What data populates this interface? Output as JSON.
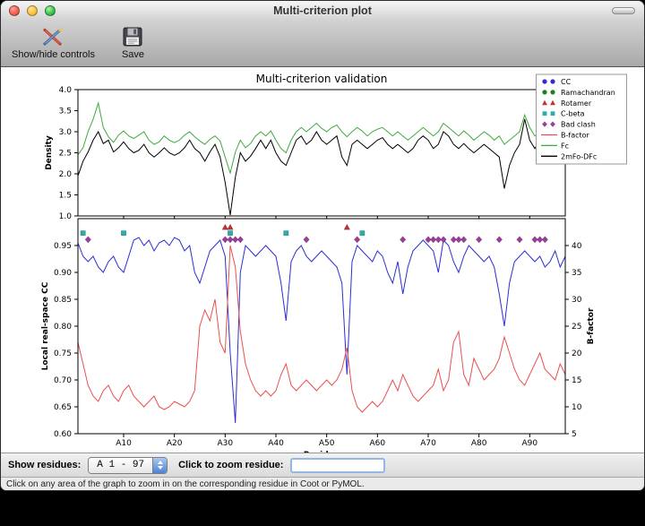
{
  "window": {
    "title": "Multi-criterion plot"
  },
  "toolbar": {
    "show_hide_label": "Show/hide controls",
    "save_label": "Save"
  },
  "controls": {
    "show_residues_label": "Show residues:",
    "residue_range_value": "A  1 - 97",
    "zoom_residue_label": "Click to zoom residue:",
    "zoom_input_value": ""
  },
  "status_bar": {
    "text": "Click on any area of the graph to zoom in on the corresponding residue in Coot or PyMOL."
  },
  "chart_data": {
    "figure_title": "Multi-criterion validation",
    "x": {
      "label": "Residue",
      "range": [
        1,
        97
      ],
      "ticks": [
        10,
        20,
        30,
        40,
        50,
        60,
        70,
        80,
        90
      ],
      "tick_labels": [
        "A10",
        "A20",
        "A30",
        "A40",
        "A50",
        "A60",
        "A70",
        "A80",
        "A90"
      ]
    },
    "legend": {
      "position": "upper right",
      "entries": [
        {
          "label": "CC",
          "marker": "circle",
          "color": "#2e2ed0"
        },
        {
          "label": "Ramachandran",
          "marker": "circle",
          "color": "#1d801d"
        },
        {
          "label": "Rotamer",
          "marker": "triangle",
          "color": "#c03030"
        },
        {
          "label": "C-beta",
          "marker": "square",
          "color": "#2aadad"
        },
        {
          "label": "Bad clash",
          "marker": "diamond",
          "color": "#9c3d9c"
        },
        {
          "label": "B-factor",
          "marker": "line",
          "color": "#e85050"
        },
        {
          "label": "Fc",
          "marker": "line",
          "color": "#3faa3f"
        },
        {
          "label": "2mFo-DFc",
          "marker": "line",
          "color": "#000000"
        }
      ]
    },
    "top_plot": {
      "type": "line",
      "ylabel": "Density",
      "ylim": [
        1.0,
        4.0
      ],
      "yticks": [
        "1.0",
        "1.5",
        "2.0",
        "2.5",
        "3.0",
        "3.5",
        "4.0"
      ],
      "series": [
        {
          "name": "Fc",
          "color": "#3faa3f",
          "values": [
            2.45,
            2.62,
            3.0,
            3.3,
            3.68,
            3.1,
            2.88,
            2.75,
            2.92,
            3.02,
            2.9,
            2.84,
            2.92,
            3.0,
            2.8,
            2.7,
            2.76,
            2.9,
            2.8,
            2.74,
            2.8,
            2.92,
            3.0,
            2.88,
            2.78,
            2.7,
            2.82,
            2.9,
            2.78,
            2.4,
            2.02,
            2.52,
            2.8,
            2.62,
            2.72,
            2.9,
            3.0,
            2.9,
            3.02,
            2.8,
            2.6,
            2.5,
            2.8,
            3.0,
            3.1,
            3.0,
            3.1,
            3.2,
            3.08,
            3.0,
            3.1,
            3.16,
            3.0,
            2.88,
            3.0,
            3.1,
            3.02,
            2.9,
            3.0,
            3.06,
            3.1,
            3.0,
            2.9,
            3.0,
            2.9,
            2.8,
            2.9,
            3.0,
            3.1,
            3.0,
            2.9,
            3.0,
            3.2,
            3.1,
            3.0,
            2.9,
            3.02,
            2.92,
            2.8,
            2.9,
            3.0,
            2.92,
            2.8,
            2.9,
            2.7,
            2.8,
            2.9,
            3.0,
            3.4,
            3.1,
            2.9,
            3.0,
            2.9,
            3.0,
            3.3,
            2.92,
            3.36
          ]
        },
        {
          "name": "2mFo-DFc",
          "color": "#000000",
          "values": [
            1.95,
            2.3,
            2.52,
            2.8,
            3.0,
            2.72,
            2.8,
            2.52,
            2.62,
            2.76,
            2.6,
            2.5,
            2.56,
            2.7,
            2.5,
            2.4,
            2.5,
            2.62,
            2.5,
            2.44,
            2.5,
            2.62,
            2.8,
            2.6,
            2.5,
            2.3,
            2.52,
            2.7,
            2.4,
            1.8,
            1.02,
            1.92,
            2.5,
            2.3,
            2.42,
            2.6,
            2.8,
            2.6,
            2.8,
            2.5,
            2.3,
            2.2,
            2.5,
            2.8,
            2.9,
            2.7,
            2.8,
            3.0,
            2.8,
            2.7,
            2.8,
            2.9,
            2.4,
            2.2,
            2.7,
            2.8,
            2.7,
            2.6,
            2.7,
            2.8,
            2.86,
            2.7,
            2.6,
            2.7,
            2.6,
            2.5,
            2.6,
            2.8,
            2.9,
            2.8,
            2.6,
            2.7,
            3.0,
            2.9,
            2.7,
            2.6,
            2.72,
            2.6,
            2.5,
            2.6,
            2.7,
            2.6,
            2.5,
            2.4,
            1.65,
            2.2,
            2.5,
            2.7,
            3.3,
            2.8,
            2.6,
            2.8,
            2.6,
            2.7,
            3.1,
            2.6,
            3.3
          ]
        }
      ]
    },
    "bottom_plot": {
      "type": "line",
      "ylabel_left": "Local real-space CC",
      "ylabel_right": "B-factor",
      "ylim_left": [
        0.6,
        1.0
      ],
      "yticks_left": [
        "0.60",
        "0.65",
        "0.70",
        "0.75",
        "0.80",
        "0.85",
        "0.90",
        "0.95"
      ],
      "ylim_right": [
        5,
        45
      ],
      "yticks_right": [
        "5",
        "10",
        "15",
        "20",
        "25",
        "30",
        "35",
        "40"
      ],
      "series": [
        {
          "name": "CC",
          "axis": "left",
          "color": "#2e2ed0",
          "values": [
            0.955,
            0.93,
            0.92,
            0.93,
            0.91,
            0.9,
            0.92,
            0.93,
            0.91,
            0.9,
            0.93,
            0.96,
            0.965,
            0.95,
            0.96,
            0.94,
            0.955,
            0.96,
            0.95,
            0.965,
            0.96,
            0.94,
            0.95,
            0.9,
            0.88,
            0.91,
            0.94,
            0.95,
            0.96,
            0.93,
            0.75,
            0.62,
            0.9,
            0.95,
            0.94,
            0.93,
            0.94,
            0.95,
            0.94,
            0.93,
            0.88,
            0.81,
            0.92,
            0.94,
            0.95,
            0.93,
            0.92,
            0.93,
            0.94,
            0.93,
            0.92,
            0.91,
            0.88,
            0.71,
            0.92,
            0.95,
            0.94,
            0.93,
            0.92,
            0.94,
            0.93,
            0.9,
            0.88,
            0.92,
            0.86,
            0.91,
            0.94,
            0.95,
            0.96,
            0.95,
            0.94,
            0.9,
            0.96,
            0.95,
            0.92,
            0.9,
            0.93,
            0.95,
            0.94,
            0.93,
            0.92,
            0.93,
            0.91,
            0.86,
            0.8,
            0.88,
            0.92,
            0.93,
            0.94,
            0.93,
            0.92,
            0.93,
            0.91,
            0.92,
            0.94,
            0.91,
            0.93
          ]
        },
        {
          "name": "B-factor",
          "axis": "right",
          "color": "#e85050",
          "values": [
            22,
            18,
            14,
            12,
            11,
            13,
            14,
            12,
            11,
            13,
            14,
            12,
            11,
            10,
            11,
            12,
            10,
            9.5,
            10,
            11,
            10.5,
            10,
            11,
            13,
            25,
            28,
            26,
            30,
            22,
            20,
            40,
            36,
            24,
            18,
            15,
            13,
            12,
            13,
            12,
            13,
            16,
            18,
            14,
            13,
            14,
            15,
            14,
            13,
            14,
            15,
            14,
            15,
            17,
            21,
            13,
            10,
            9,
            10,
            11,
            10,
            11,
            13,
            15,
            13,
            16,
            14,
            12,
            11,
            12,
            13,
            14,
            17,
            13,
            15,
            22,
            24,
            16,
            14,
            19,
            17,
            15,
            16,
            17,
            19,
            23,
            20,
            17,
            15,
            14,
            16,
            18,
            20,
            17,
            16,
            15,
            18,
            16
          ]
        }
      ],
      "outlier_markers": [
        {
          "name": "Rotamer",
          "shape": "triangle",
          "color": "#c03030",
          "y": 0.984,
          "residues": [
            30,
            31,
            54
          ]
        },
        {
          "name": "C-beta",
          "shape": "square",
          "color": "#2aadad",
          "y": 0.973,
          "residues": [
            2,
            10,
            31,
            42,
            57
          ]
        },
        {
          "name": "Bad clash",
          "shape": "diamond",
          "color": "#9c3d9c",
          "y": 0.961,
          "residues": [
            3,
            30,
            31,
            32,
            33,
            46,
            56,
            65,
            70,
            71,
            72,
            73,
            75,
            76,
            77,
            80,
            84,
            88,
            91,
            92,
            93
          ]
        }
      ]
    }
  }
}
